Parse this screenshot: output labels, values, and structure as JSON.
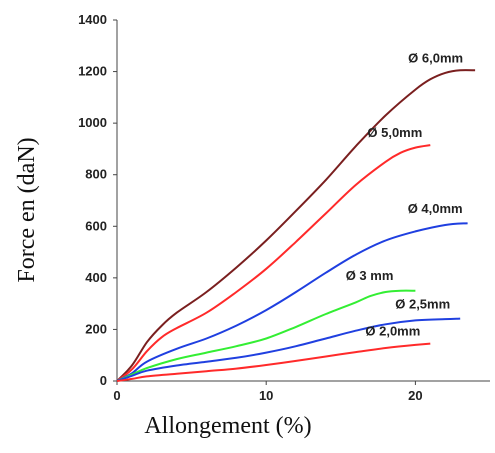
{
  "chart_data": {
    "type": "line",
    "title": "",
    "xlabel": "Allongement (%)",
    "ylabel": "Force en (daN)",
    "xlim": [
      0,
      25
    ],
    "ylim": [
      0,
      1400
    ],
    "xticks": [
      "0",
      "10",
      "20"
    ],
    "yticks": [
      "0",
      "200",
      "400",
      "600",
      "800",
      "1000",
      "1200",
      "1400"
    ],
    "grid": false,
    "legend": "inline-labels",
    "series": [
      {
        "name": "Ø 6,0mm",
        "color": "#7a1f1f",
        "points": [
          [
            0,
            0
          ],
          [
            1,
            60
          ],
          [
            2,
            150
          ],
          [
            3,
            215
          ],
          [
            4,
            265
          ],
          [
            6,
            345
          ],
          [
            8,
            440
          ],
          [
            10,
            545
          ],
          [
            12,
            660
          ],
          [
            14,
            780
          ],
          [
            16,
            910
          ],
          [
            18,
            1030
          ],
          [
            20,
            1130
          ],
          [
            21,
            1170
          ],
          [
            22,
            1195
          ],
          [
            23,
            1205
          ],
          [
            24,
            1205
          ]
        ]
      },
      {
        "name": "Ø 5,0mm",
        "color": "#ff2a2a",
        "points": [
          [
            0,
            0
          ],
          [
            1,
            45
          ],
          [
            2,
            115
          ],
          [
            3,
            170
          ],
          [
            4,
            205
          ],
          [
            6,
            265
          ],
          [
            8,
            345
          ],
          [
            10,
            435
          ],
          [
            12,
            540
          ],
          [
            14,
            650
          ],
          [
            16,
            760
          ],
          [
            18,
            850
          ],
          [
            19,
            885
          ],
          [
            20,
            905
          ],
          [
            21,
            915
          ]
        ]
      },
      {
        "name": "Ø 4,0mm",
        "color": "#1f3fe0",
        "points": [
          [
            0,
            0
          ],
          [
            1,
            30
          ],
          [
            2,
            75
          ],
          [
            4,
            125
          ],
          [
            6,
            165
          ],
          [
            8,
            215
          ],
          [
            10,
            275
          ],
          [
            12,
            345
          ],
          [
            14,
            420
          ],
          [
            16,
            490
          ],
          [
            18,
            545
          ],
          [
            20,
            580
          ],
          [
            22,
            605
          ],
          [
            23.5,
            612
          ]
        ]
      },
      {
        "name": "Ø 3 mm",
        "color": "#33ee33",
        "points": [
          [
            0,
            0
          ],
          [
            1,
            25
          ],
          [
            2,
            50
          ],
          [
            4,
            85
          ],
          [
            6,
            110
          ],
          [
            8,
            135
          ],
          [
            10,
            165
          ],
          [
            12,
            210
          ],
          [
            14,
            260
          ],
          [
            16,
            305
          ],
          [
            17,
            330
          ],
          [
            18,
            345
          ],
          [
            19,
            350
          ],
          [
            20,
            350
          ]
        ]
      },
      {
        "name": "Ø 2,5mm",
        "color": "#2040e0",
        "points": [
          [
            0,
            0
          ],
          [
            1,
            20
          ],
          [
            2,
            40
          ],
          [
            4,
            60
          ],
          [
            6,
            75
          ],
          [
            8,
            90
          ],
          [
            10,
            110
          ],
          [
            12,
            135
          ],
          [
            14,
            165
          ],
          [
            16,
            195
          ],
          [
            18,
            220
          ],
          [
            20,
            235
          ],
          [
            22,
            240
          ],
          [
            23,
            242
          ]
        ]
      },
      {
        "name": "Ø 2,0mm",
        "color": "#ff2a2a",
        "points": [
          [
            0,
            0
          ],
          [
            1,
            8
          ],
          [
            2,
            18
          ],
          [
            4,
            28
          ],
          [
            6,
            38
          ],
          [
            8,
            48
          ],
          [
            10,
            62
          ],
          [
            12,
            78
          ],
          [
            14,
            95
          ],
          [
            16,
            112
          ],
          [
            18,
            128
          ],
          [
            20,
            140
          ],
          [
            21,
            145
          ]
        ]
      }
    ]
  }
}
